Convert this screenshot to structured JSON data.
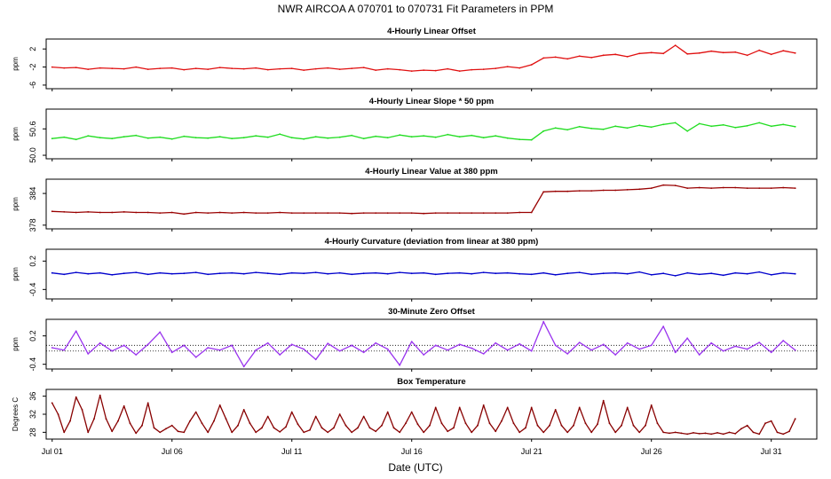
{
  "figure": {
    "title": "NWR   AIRCOA A   070701 to 070731   Fit Parameters in PPM",
    "xlabel": "Date (UTC)",
    "x_ticks": [
      "Jul 01",
      "Jul 06",
      "Jul 11",
      "Jul 16",
      "Jul 21",
      "Jul 26",
      "Jul 31"
    ]
  },
  "chart_data": [
    {
      "type": "line",
      "title": "4-Hourly Linear Offset",
      "ylabel": "ppm",
      "yticks": [
        "2",
        "-2",
        "-6"
      ],
      "ytick_values": [
        2,
        -2,
        -6
      ],
      "ylim": [
        -6.8,
        4.2
      ],
      "color": "#e01010",
      "x": [
        1,
        1.5,
        2,
        2.5,
        3,
        3.5,
        4,
        4.5,
        5,
        5.5,
        6,
        6.5,
        7,
        7.5,
        8,
        8.5,
        9,
        9.5,
        10,
        10.5,
        11,
        11.5,
        12,
        12.5,
        13,
        13.5,
        14,
        14.5,
        15,
        15.5,
        16,
        16.5,
        17,
        17.5,
        18,
        18.5,
        19,
        19.5,
        20,
        20.5,
        21,
        21.5,
        22,
        22.5,
        23,
        23.5,
        24,
        24.5,
        25,
        25.5,
        26,
        26.5,
        27,
        27.5,
        28,
        28.5,
        29,
        29.5,
        30,
        30.5,
        31,
        31.5,
        32
      ],
      "values": [
        -2.0,
        -2.2,
        -2.1,
        -2.5,
        -2.2,
        -2.3,
        -2.4,
        -2.0,
        -2.5,
        -2.3,
        -2.2,
        -2.6,
        -2.3,
        -2.5,
        -2.1,
        -2.3,
        -2.4,
        -2.2,
        -2.6,
        -2.4,
        -2.3,
        -2.7,
        -2.4,
        -2.2,
        -2.5,
        -2.3,
        -2.1,
        -2.7,
        -2.4,
        -2.6,
        -2.9,
        -2.7,
        -2.8,
        -2.4,
        -2.9,
        -2.6,
        -2.5,
        -2.3,
        -1.9,
        -2.2,
        -1.5,
        0.0,
        0.2,
        -0.2,
        0.4,
        0.1,
        0.6,
        0.8,
        0.3,
        1.0,
        1.2,
        1.0,
        2.8,
        0.9,
        1.1,
        1.5,
        1.2,
        1.3,
        0.6,
        1.7,
        0.8,
        1.6,
        1.1
      ]
    },
    {
      "type": "line",
      "title": "4-Hourly Linear Slope * 50 ppm",
      "ylabel": "ppm",
      "yticks": [
        "50.6",
        "50.0"
      ],
      "ytick_values": [
        50.6,
        50.0
      ],
      "ylim": [
        49.92,
        51.05
      ],
      "color": "#22dd22",
      "x": [
        1,
        1.5,
        2,
        2.5,
        3,
        3.5,
        4,
        4.5,
        5,
        5.5,
        6,
        6.5,
        7,
        7.5,
        8,
        8.5,
        9,
        9.5,
        10,
        10.5,
        11,
        11.5,
        12,
        12.5,
        13,
        13.5,
        14,
        14.5,
        15,
        15.5,
        16,
        16.5,
        17,
        17.5,
        18,
        18.5,
        19,
        19.5,
        20,
        20.5,
        21,
        21.5,
        22,
        22.5,
        23,
        23.5,
        24,
        24.5,
        25,
        25.5,
        26,
        26.5,
        27,
        27.5,
        28,
        28.5,
        29,
        29.5,
        30,
        30.5,
        31,
        31.5,
        32
      ],
      "values": [
        50.38,
        50.41,
        50.36,
        50.44,
        50.4,
        50.38,
        50.42,
        50.45,
        50.39,
        50.41,
        50.37,
        50.43,
        50.4,
        50.39,
        50.42,
        50.38,
        50.4,
        50.44,
        50.41,
        50.48,
        50.4,
        50.37,
        50.42,
        50.39,
        50.41,
        50.45,
        50.38,
        50.43,
        50.4,
        50.46,
        50.42,
        50.44,
        50.41,
        50.47,
        50.42,
        50.45,
        50.4,
        50.44,
        50.39,
        50.36,
        50.35,
        50.55,
        50.62,
        50.58,
        50.65,
        50.61,
        50.59,
        50.66,
        50.62,
        50.68,
        50.64,
        50.7,
        50.74,
        50.55,
        50.72,
        50.66,
        50.69,
        50.63,
        50.67,
        50.74,
        50.66,
        50.7,
        50.65
      ]
    },
    {
      "type": "line",
      "title": "4-Hourly Linear Value at 380 ppm",
      "ylabel": "ppm",
      "yticks": [
        "384",
        "378"
      ],
      "ytick_values": [
        384,
        378
      ],
      "ylim": [
        377.3,
        386.7
      ],
      "color": "#990000",
      "x": [
        1,
        1.5,
        2,
        2.5,
        3,
        3.5,
        4,
        4.5,
        5,
        5.5,
        6,
        6.5,
        7,
        7.5,
        8,
        8.5,
        9,
        9.5,
        10,
        10.5,
        11,
        11.5,
        12,
        12.5,
        13,
        13.5,
        14,
        14.5,
        15,
        15.5,
        16,
        16.5,
        17,
        17.5,
        18,
        18.5,
        19,
        19.5,
        20,
        20.5,
        21,
        21.5,
        22,
        22.5,
        23,
        23.5,
        24,
        24.5,
        25,
        25.5,
        26,
        26.5,
        27,
        27.5,
        28,
        28.5,
        29,
        29.5,
        30,
        30.5,
        31,
        31.5,
        32
      ],
      "values": [
        380.6,
        380.5,
        380.4,
        380.5,
        380.4,
        380.4,
        380.5,
        380.4,
        380.4,
        380.3,
        380.4,
        380.1,
        380.4,
        380.3,
        380.4,
        380.3,
        380.4,
        380.3,
        380.3,
        380.4,
        380.3,
        380.3,
        380.3,
        380.3,
        380.3,
        380.2,
        380.3,
        380.3,
        380.3,
        380.3,
        380.3,
        380.2,
        380.3,
        380.3,
        380.3,
        380.3,
        380.3,
        380.3,
        380.3,
        380.4,
        380.4,
        384.3,
        384.4,
        384.4,
        384.5,
        384.5,
        384.6,
        384.6,
        384.7,
        384.8,
        385.0,
        385.6,
        385.5,
        385.0,
        385.1,
        385.0,
        385.1,
        385.1,
        385.0,
        385.0,
        385.0,
        385.1,
        385.0
      ]
    },
    {
      "type": "line",
      "title": "4-Hourly Curvature (deviation from linear at 380 ppm)",
      "ylabel": "ppm",
      "yticks": [
        "0.2",
        "-0.4"
      ],
      "ytick_values": [
        0.2,
        -0.4
      ],
      "ylim": [
        -0.6,
        0.45
      ],
      "color": "#0000cc",
      "x": [
        1,
        1.5,
        2,
        2.5,
        3,
        3.5,
        4,
        4.5,
        5,
        5.5,
        6,
        6.5,
        7,
        7.5,
        8,
        8.5,
        9,
        9.5,
        10,
        10.5,
        11,
        11.5,
        12,
        12.5,
        13,
        13.5,
        14,
        14.5,
        15,
        15.5,
        16,
        16.5,
        17,
        17.5,
        18,
        18.5,
        19,
        19.5,
        20,
        20.5,
        21,
        21.5,
        22,
        22.5,
        23,
        23.5,
        24,
        24.5,
        25,
        25.5,
        26,
        26.5,
        27,
        27.5,
        28,
        28.5,
        29,
        29.5,
        30,
        30.5,
        31,
        31.5,
        32
      ],
      "values": [
        -0.05,
        -0.08,
        -0.04,
        -0.07,
        -0.05,
        -0.09,
        -0.06,
        -0.04,
        -0.08,
        -0.05,
        -0.07,
        -0.06,
        -0.04,
        -0.08,
        -0.06,
        -0.05,
        -0.07,
        -0.04,
        -0.06,
        -0.08,
        -0.05,
        -0.06,
        -0.04,
        -0.07,
        -0.05,
        -0.08,
        -0.06,
        -0.05,
        -0.07,
        -0.04,
        -0.06,
        -0.05,
        -0.08,
        -0.06,
        -0.05,
        -0.07,
        -0.04,
        -0.06,
        -0.05,
        -0.07,
        -0.08,
        -0.05,
        -0.09,
        -0.06,
        -0.04,
        -0.08,
        -0.06,
        -0.05,
        -0.07,
        -0.03,
        -0.09,
        -0.06,
        -0.11,
        -0.05,
        -0.08,
        -0.06,
        -0.1,
        -0.05,
        -0.07,
        -0.03,
        -0.09,
        -0.05,
        -0.07
      ]
    },
    {
      "type": "line",
      "title": "30-Minute Zero Offset",
      "ylabel": "ppm",
      "yticks": [
        "0.2",
        "-0.4"
      ],
      "ytick_values": [
        0.2,
        -0.4
      ],
      "ylim": [
        -0.5,
        0.55
      ],
      "ref_lines": [
        0.0,
        -0.12
      ],
      "color": "#9933ee",
      "x": [
        1,
        1.5,
        2,
        2.5,
        3,
        3.5,
        4,
        4.5,
        5,
        5.5,
        6,
        6.5,
        7,
        7.5,
        8,
        8.5,
        9,
        9.5,
        10,
        10.5,
        11,
        11.5,
        12,
        12.5,
        13,
        13.5,
        14,
        14.5,
        15,
        15.5,
        16,
        16.5,
        17,
        17.5,
        18,
        18.5,
        19,
        19.5,
        20,
        20.5,
        21,
        21.5,
        22,
        22.5,
        23,
        23.5,
        24,
        24.5,
        25,
        25.5,
        26,
        26.5,
        27,
        27.5,
        28,
        28.5,
        29,
        29.5,
        30,
        30.5,
        31,
        31.5,
        32
      ],
      "values": [
        -0.05,
        -0.1,
        0.3,
        -0.18,
        0.05,
        -0.12,
        0.0,
        -0.2,
        0.02,
        0.28,
        -0.15,
        0.0,
        -0.25,
        -0.05,
        -0.1,
        0.0,
        -0.45,
        -0.1,
        0.05,
        -0.2,
        0.02,
        -0.08,
        -0.3,
        0.04,
        -0.12,
        0.0,
        -0.15,
        0.05,
        -0.08,
        -0.42,
        0.08,
        -0.2,
        0.0,
        -0.1,
        0.02,
        -0.06,
        -0.18,
        0.05,
        -0.1,
        0.03,
        -0.12,
        0.5,
        0.0,
        -0.18,
        0.06,
        -0.1,
        0.02,
        -0.2,
        0.05,
        -0.08,
        0.0,
        0.4,
        -0.15,
        0.15,
        -0.2,
        0.05,
        -0.12,
        -0.02,
        -0.08,
        0.06,
        -0.15,
        0.1,
        -0.1
      ]
    },
    {
      "type": "line",
      "title": "Box Temperature",
      "ylabel": "Degrees C",
      "yticks": [
        "36",
        "32",
        "28"
      ],
      "ytick_values": [
        36,
        32,
        28
      ],
      "ylim": [
        26.5,
        37.5
      ],
      "color": "#880000",
      "x": [
        1,
        1.25,
        1.5,
        1.75,
        2,
        2.25,
        2.5,
        2.75,
        3,
        3.25,
        3.5,
        3.75,
        4,
        4.25,
        4.5,
        4.75,
        5,
        5.25,
        5.5,
        5.75,
        6,
        6.25,
        6.5,
        6.75,
        7,
        7.25,
        7.5,
        7.75,
        8,
        8.25,
        8.5,
        8.75,
        9,
        9.25,
        9.5,
        9.75,
        10,
        10.25,
        10.5,
        10.75,
        11,
        11.25,
        11.5,
        11.75,
        12,
        12.25,
        12.5,
        12.75,
        13,
        13.25,
        13.5,
        13.75,
        14,
        14.25,
        14.5,
        14.75,
        15,
        15.25,
        15.5,
        15.75,
        16,
        16.25,
        16.5,
        16.75,
        17,
        17.25,
        17.5,
        17.75,
        18,
        18.25,
        18.5,
        18.75,
        19,
        19.25,
        19.5,
        19.75,
        20,
        20.25,
        20.5,
        20.75,
        21,
        21.25,
        21.5,
        21.75,
        22,
        22.25,
        22.5,
        22.75,
        23,
        23.25,
        23.5,
        23.75,
        24,
        24.25,
        24.5,
        24.75,
        25,
        25.25,
        25.5,
        25.75,
        26,
        26.25,
        26.5,
        26.75,
        27,
        27.25,
        27.5,
        27.75,
        28,
        28.25,
        28.5,
        28.75,
        29,
        29.25,
        29.5,
        29.75,
        30,
        30.25,
        30.5,
        30.75,
        31,
        31.25,
        31.5,
        31.75,
        32
      ],
      "values": [
        34.5,
        32,
        28,
        30.5,
        35.8,
        33,
        28,
        31,
        36.2,
        31,
        28.2,
        30.5,
        33.8,
        30,
        27.8,
        29.5,
        34.5,
        29,
        28,
        28.8,
        29.5,
        28.2,
        28,
        30.5,
        32.5,
        30,
        28,
        30.5,
        34,
        31,
        28,
        29.5,
        33,
        30,
        28,
        29,
        31.5,
        29,
        28.1,
        29.2,
        32.5,
        29.8,
        28,
        28.5,
        31.5,
        29,
        28,
        29,
        32,
        29.5,
        28,
        29,
        31.5,
        29,
        28.2,
        29.5,
        32.5,
        29,
        28,
        30,
        32.5,
        29.8,
        28,
        29.5,
        33.5,
        30,
        28.2,
        29,
        33.5,
        30,
        28,
        29.5,
        34,
        30,
        28.2,
        30.5,
        33.5,
        30,
        28,
        29,
        33.5,
        29.5,
        28,
        29.5,
        33,
        29.5,
        28,
        29.5,
        33.5,
        30,
        28,
        29.8,
        35,
        30,
        28,
        29.5,
        33.5,
        29.5,
        28,
        29.5,
        34,
        30,
        28,
        27.8,
        28,
        27.8,
        27.6,
        27.9,
        27.7,
        27.8,
        27.6,
        27.9,
        27.6,
        28.0,
        27.7,
        28.8,
        29.5,
        28,
        27.6,
        30,
        30.5,
        28,
        27.6,
        28.2,
        31
      ]
    }
  ]
}
